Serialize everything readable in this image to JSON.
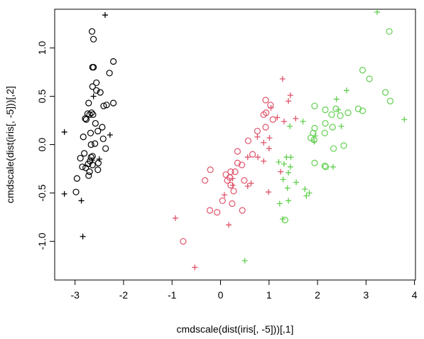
{
  "chart_data": {
    "type": "scatter",
    "title": "",
    "xlabel": "cmdscale(dist(iris[, -5]))[,1]",
    "ylabel": "cmdscale(dist(iris[, -5]))[,2]",
    "xlim": [
      -3.42,
      4.02
    ],
    "ylim": [
      -1.4,
      1.4
    ],
    "x_ticks": [
      -3,
      -2,
      -1,
      0,
      1,
      2,
      3,
      4
    ],
    "y_ticks": [
      -1.0,
      -0.5,
      0.0,
      0.5,
      1.0
    ],
    "x_tick_labels": [
      "-3",
      "-2",
      "-1",
      "0",
      "1",
      "2",
      "3",
      "4"
    ],
    "y_tick_labels": [
      "-1.0",
      "-0.5",
      "0.0",
      "0.5",
      "1.0"
    ],
    "grid": false,
    "series": [
      {
        "color": "#000000",
        "symbol_o": [
          [
            -2.65,
            1.17
          ],
          [
            -2.62,
            1.09
          ],
          [
            -2.64,
            0.8
          ],
          [
            -2.62,
            0.8
          ],
          [
            -2.21,
            0.86
          ],
          [
            -2.29,
            0.74
          ],
          [
            -2.56,
            0.64
          ],
          [
            -2.64,
            0.6
          ],
          [
            -2.56,
            0.56
          ],
          [
            -2.48,
            0.54
          ],
          [
            -2.72,
            0.43
          ],
          [
            -2.21,
            0.43
          ],
          [
            -2.41,
            0.4
          ],
          [
            -2.35,
            0.41
          ],
          [
            -2.66,
            0.33
          ],
          [
            -2.7,
            0.31
          ],
          [
            -2.74,
            0.32
          ],
          [
            -2.63,
            0.31
          ],
          [
            -2.79,
            0.27
          ],
          [
            -2.77,
            0.26
          ],
          [
            -2.58,
            0.22
          ],
          [
            -2.44,
            0.18
          ],
          [
            -2.68,
            0.12
          ],
          [
            -2.53,
            0.14
          ],
          [
            -2.83,
            0.08
          ],
          [
            -2.42,
            0.06
          ],
          [
            -2.67,
            0.0
          ],
          [
            -2.59,
            0.01
          ],
          [
            -2.37,
            -0.04
          ],
          [
            -2.81,
            -0.09
          ],
          [
            -2.64,
            -0.12
          ],
          [
            -2.67,
            -0.13
          ],
          [
            -2.89,
            -0.14
          ],
          [
            -2.69,
            -0.17
          ],
          [
            -2.52,
            -0.19
          ],
          [
            -2.64,
            -0.21
          ],
          [
            -2.73,
            -0.2
          ],
          [
            -2.85,
            -0.23
          ],
          [
            -2.78,
            -0.24
          ],
          [
            -2.53,
            -0.26
          ],
          [
            -2.7,
            -0.28
          ],
          [
            -2.72,
            -0.32
          ],
          [
            -2.96,
            -0.35
          ],
          [
            -2.98,
            -0.49
          ]
        ],
        "symbol_plus": [
          [
            -2.38,
            1.34
          ],
          [
            -2.62,
            0.5
          ],
          [
            -2.28,
            0.1
          ],
          [
            -2.65,
            -0.16
          ],
          [
            -2.5,
            -0.15
          ],
          [
            -3.22,
            0.13
          ],
          [
            -3.22,
            -0.51
          ],
          [
            -2.87,
            -0.58
          ],
          [
            -2.84,
            -0.95
          ]
        ]
      },
      {
        "color": "#df536b",
        "symbol_o": [
          [
            0.93,
            0.46
          ],
          [
            1.03,
            0.41
          ],
          [
            0.89,
            0.31
          ],
          [
            0.94,
            0.33
          ],
          [
            1.08,
            0.26
          ],
          [
            0.76,
            0.14
          ],
          [
            0.93,
            0.18
          ],
          [
            0.57,
            0.04
          ],
          [
            0.35,
            -0.07
          ],
          [
            0.66,
            -0.1
          ],
          [
            -0.21,
            -0.26
          ],
          [
            0.21,
            -0.28
          ],
          [
            0.35,
            -0.19
          ],
          [
            0.44,
            -0.21
          ],
          [
            0.3,
            -0.28
          ],
          [
            0.11,
            -0.31
          ],
          [
            0.19,
            -0.34
          ],
          [
            0.14,
            -0.37
          ],
          [
            0.49,
            -0.37
          ],
          [
            0.21,
            -0.42
          ],
          [
            -0.32,
            -0.37
          ],
          [
            0.27,
            -0.48
          ],
          [
            0.04,
            -0.58
          ],
          [
            0.24,
            -0.61
          ],
          [
            -0.22,
            -0.68
          ],
          [
            0.45,
            -0.68
          ],
          [
            -0.07,
            -0.7
          ],
          [
            -0.77,
            -1.0
          ]
        ],
        "symbol_plus": [
          [
            1.28,
            0.68
          ],
          [
            1.44,
            0.51
          ],
          [
            1.4,
            0.45
          ],
          [
            1.04,
            0.38
          ],
          [
            1.17,
            0.28
          ],
          [
            1.31,
            0.24
          ],
          [
            1.55,
            0.27
          ],
          [
            0.76,
            0.08
          ],
          [
            1.01,
            0.07
          ],
          [
            0.89,
            0.02
          ],
          [
            1.0,
            -0.04
          ],
          [
            0.56,
            -0.13
          ],
          [
            0.77,
            -0.13
          ],
          [
            0.89,
            -0.17
          ],
          [
            1.24,
            -0.28
          ],
          [
            0.25,
            -0.35
          ],
          [
            0.63,
            -0.4
          ],
          [
            0.56,
            -0.43
          ],
          [
            0.99,
            -0.49
          ],
          [
            0.25,
            -0.42
          ],
          [
            0.08,
            -0.52
          ],
          [
            -0.93,
            -0.76
          ],
          [
            0.17,
            -0.83
          ],
          [
            -0.53,
            -1.27
          ]
        ]
      },
      {
        "color": "#61d04f",
        "symbol_o": [
          [
            3.48,
            1.17
          ],
          [
            2.93,
            0.77
          ],
          [
            3.07,
            0.68
          ],
          [
            3.4,
            0.54
          ],
          [
            3.5,
            0.45
          ],
          [
            2.38,
            0.37
          ],
          [
            1.94,
            0.4
          ],
          [
            2.16,
            0.36
          ],
          [
            2.29,
            0.31
          ],
          [
            2.47,
            0.3
          ],
          [
            2.63,
            0.33
          ],
          [
            2.84,
            0.37
          ],
          [
            2.93,
            0.35
          ],
          [
            2.16,
            0.22
          ],
          [
            2.31,
            0.18
          ],
          [
            2.15,
            0.12
          ],
          [
            1.94,
            0.17
          ],
          [
            1.91,
            0.12
          ],
          [
            1.86,
            0.07
          ],
          [
            1.93,
            0.05
          ],
          [
            2.33,
            -0.04
          ],
          [
            2.54,
            -0.01
          ],
          [
            1.94,
            -0.19
          ],
          [
            2.15,
            -0.22
          ],
          [
            2.17,
            -0.23
          ],
          [
            1.33,
            -0.78
          ]
        ],
        "symbol_plus": [
          [
            3.23,
            1.37
          ],
          [
            2.6,
            0.56
          ],
          [
            2.39,
            0.47
          ],
          [
            2.43,
            0.36
          ],
          [
            2.49,
            0.19
          ],
          [
            3.79,
            0.26
          ],
          [
            1.43,
            0.19
          ],
          [
            1.7,
            0.24
          ],
          [
            1.95,
            0.09
          ],
          [
            1.93,
            0.03
          ],
          [
            1.36,
            -0.13
          ],
          [
            1.45,
            -0.13
          ],
          [
            1.2,
            -0.18
          ],
          [
            1.31,
            -0.2
          ],
          [
            1.44,
            -0.23
          ],
          [
            2.32,
            -0.23
          ],
          [
            1.4,
            -0.29
          ],
          [
            1.56,
            -0.39
          ],
          [
            1.29,
            -0.36
          ],
          [
            1.74,
            -0.46
          ],
          [
            1.38,
            -0.45
          ],
          [
            1.77,
            -0.53
          ],
          [
            1.83,
            -0.5
          ],
          [
            1.4,
            -0.58
          ],
          [
            1.22,
            -0.61
          ],
          [
            1.28,
            -0.77
          ],
          [
            0.5,
            -1.2
          ]
        ]
      }
    ]
  }
}
